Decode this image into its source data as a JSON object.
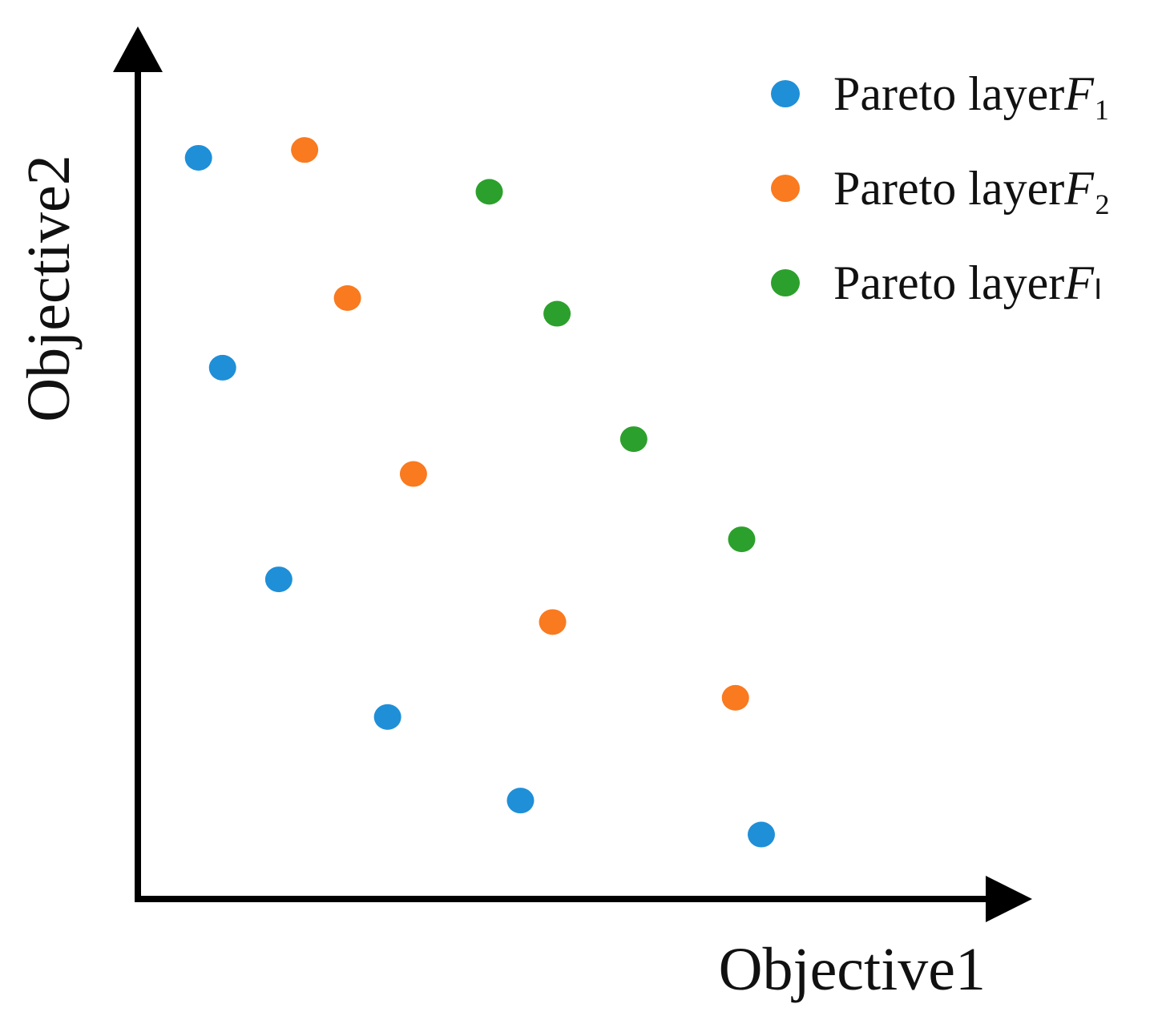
{
  "chart_data": {
    "type": "scatter",
    "x_label": "Objective1",
    "y_label": "Objective2",
    "xlim": [
      0,
      100
    ],
    "ylim": [
      0,
      100
    ],
    "legend": "top-right",
    "series": [
      {
        "name": "Pareto layerF₁",
        "color": "#1f8fd8",
        "x": [
          6.8,
          9.5,
          15.8,
          28.0,
          42.9,
          69.9
        ],
        "values": [
          85.1,
          61.0,
          36.7,
          20.9,
          11.3,
          7.4
        ]
      },
      {
        "name": "Pareto layerF₂",
        "color": "#f97a1f",
        "x": [
          18.7,
          23.5,
          30.9,
          46.5,
          67.0
        ],
        "values": [
          86.0,
          69.0,
          48.8,
          31.8,
          23.1
        ]
      },
      {
        "name": "Pareto layerFₗ",
        "color": "#2ca02c",
        "x": [
          39.4,
          47.0,
          55.6,
          67.7
        ],
        "values": [
          81.2,
          67.2,
          52.8,
          41.3
        ]
      }
    ]
  }
}
